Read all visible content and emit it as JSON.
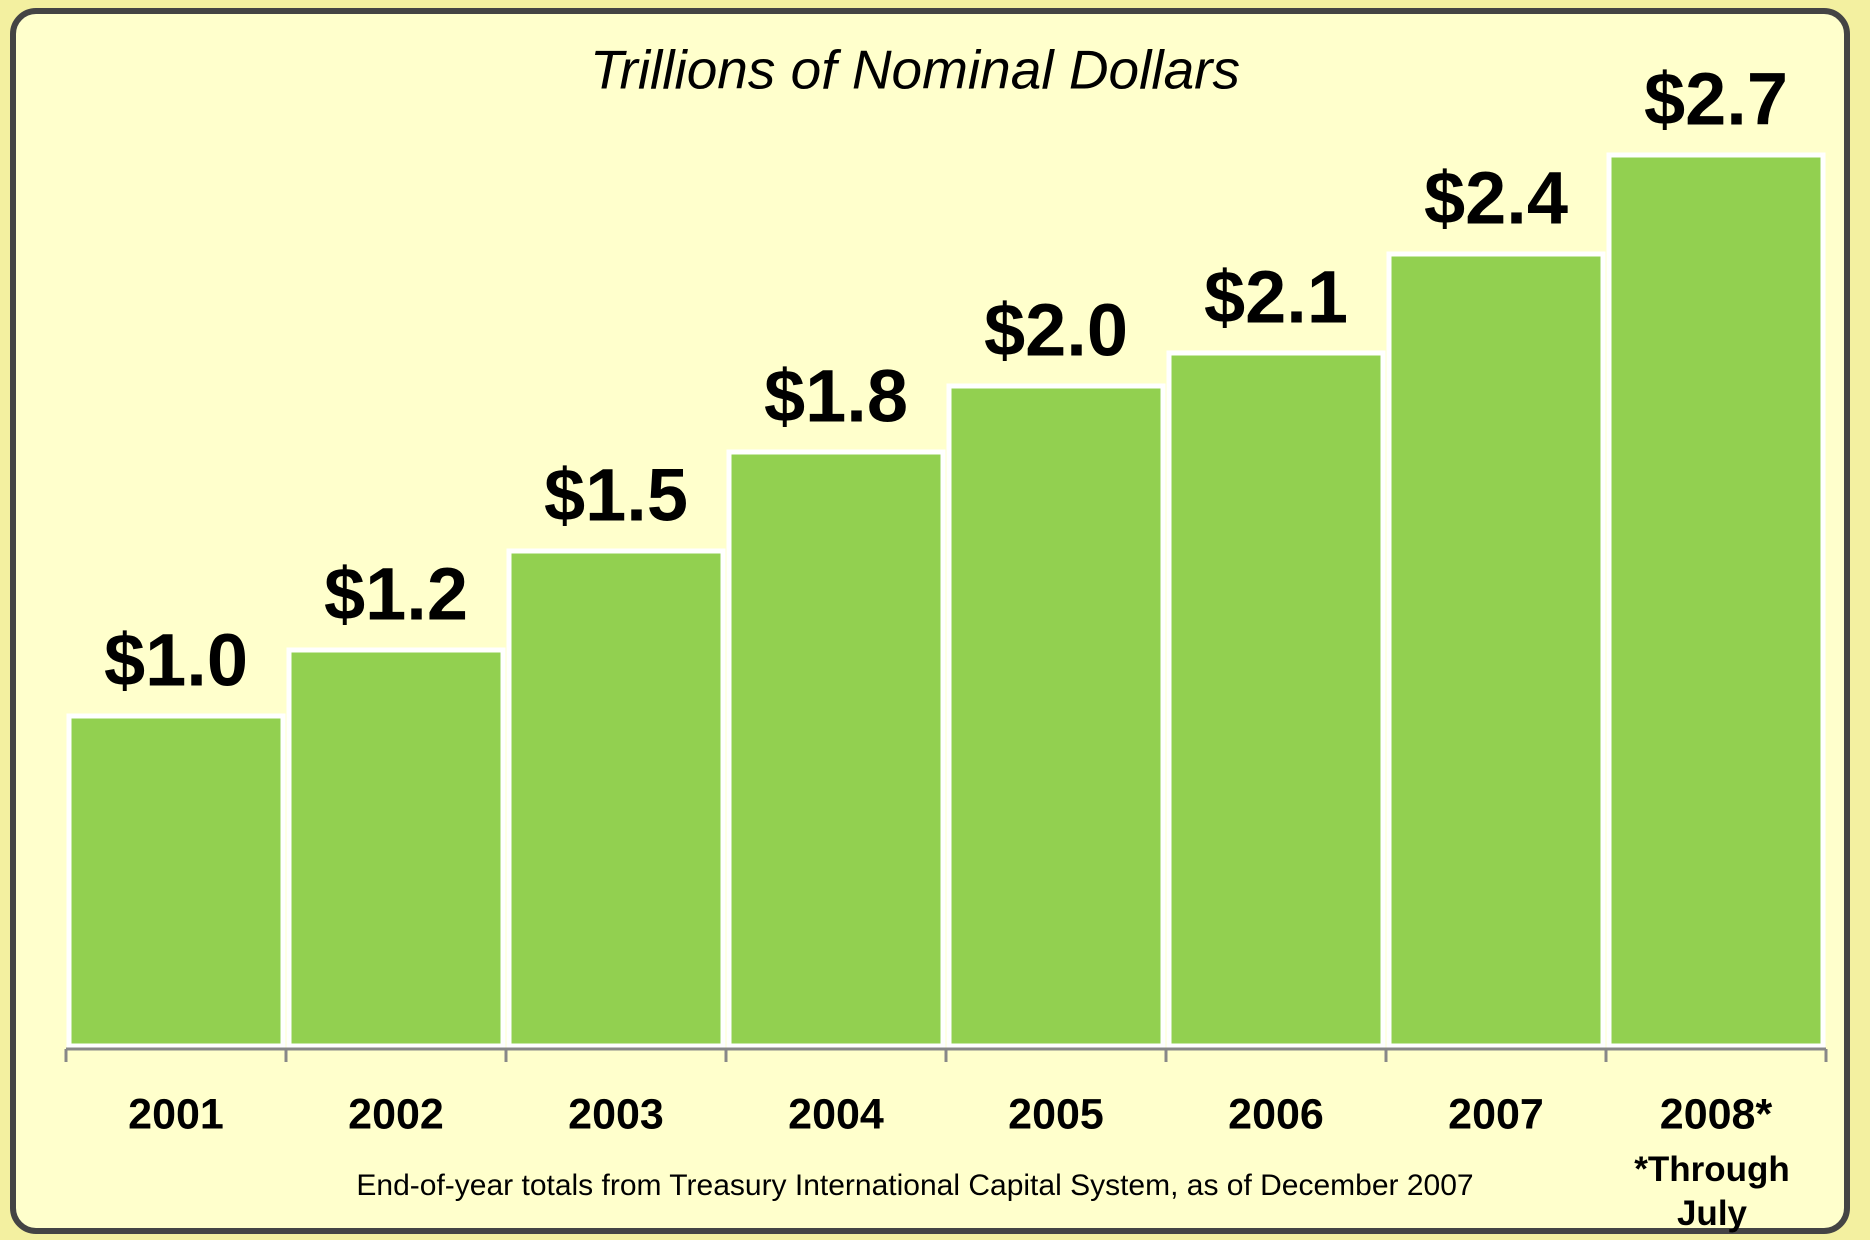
{
  "chart_data": {
    "type": "bar",
    "title": "Trillions of Nominal Dollars",
    "categories": [
      "2001",
      "2002",
      "2003",
      "2004",
      "2005",
      "2006",
      "2007",
      "2008*"
    ],
    "values": [
      1.0,
      1.2,
      1.5,
      1.8,
      2.0,
      2.1,
      2.4,
      2.7
    ],
    "value_labels": [
      "$1.0",
      "$1.2",
      "$1.5",
      "$1.8",
      "$2.0",
      "$2.1",
      "$2.4",
      "$2.7"
    ],
    "color": "#92d050",
    "ylim": [
      0,
      3.0
    ],
    "note": "End-of-year totals from Treasury International Capital System, as of December 2007",
    "annotation": "*Through July"
  }
}
